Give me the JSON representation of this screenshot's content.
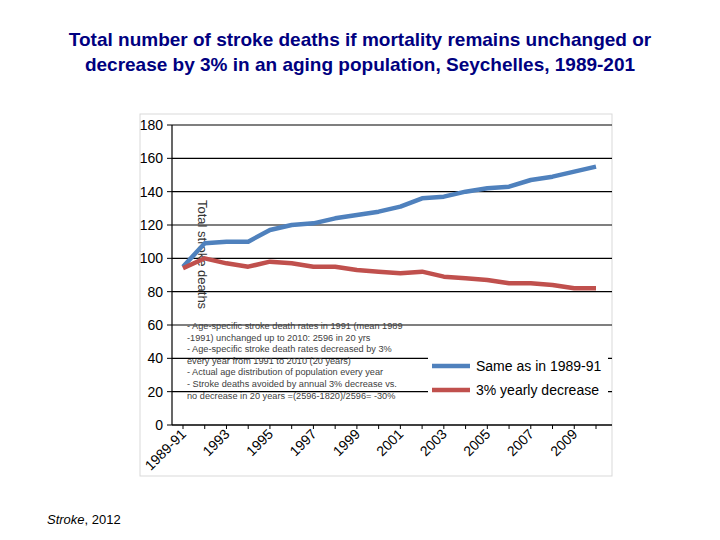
{
  "chart_data": {
    "type": "line",
    "title": [
      "Total number of stroke deaths if mortality remains unchanged or",
      "decrease by 3% in an aging population, Seychelles, 1989-201"
    ],
    "y_label": "Total stroke deaths",
    "categories": [
      "1989-91",
      null,
      "1993",
      null,
      "1995",
      null,
      "1997",
      null,
      "1999",
      null,
      "2001",
      null,
      "2003",
      null,
      "2005",
      null,
      "2007",
      null,
      "2009",
      null
    ],
    "series": [
      {
        "name": "Same as in 1989-91",
        "color": "#4f81bd",
        "values": [
          95,
          109,
          110,
          110,
          117,
          120,
          121,
          124,
          126,
          128,
          131,
          136,
          137,
          140,
          142,
          143,
          147,
          149,
          152,
          155
        ]
      },
      {
        "name": "3% yearly decrease",
        "color": "#c0504d",
        "values": [
          94,
          100,
          97,
          95,
          98,
          97,
          95,
          95,
          93,
          92,
          91,
          92,
          89,
          88,
          87,
          85,
          85,
          84,
          82,
          82
        ]
      }
    ],
    "ylim": [
      0,
      180
    ],
    "yticks": [
      0,
      20,
      40,
      60,
      80,
      100,
      120,
      140,
      160,
      180
    ],
    "grid": true,
    "legend": "right",
    "annotations": [
      "- Age-specific stroke death rates in 1991 (mean 1989",
      "-1991) unchanged up to 2010: 2596 in 20 yrs",
      "- Age-specific stroke death rates decreased by 3%",
      "every year from 1991 to 2010 (20 years)",
      "- Actual age distribution of population every year",
      "- Stroke deaths avoided by annual 3% decrease vs.",
      "no decrease in 20 years =(2596-1820)/2596= -30%"
    ],
    "source": "Stroke, 2012"
  }
}
